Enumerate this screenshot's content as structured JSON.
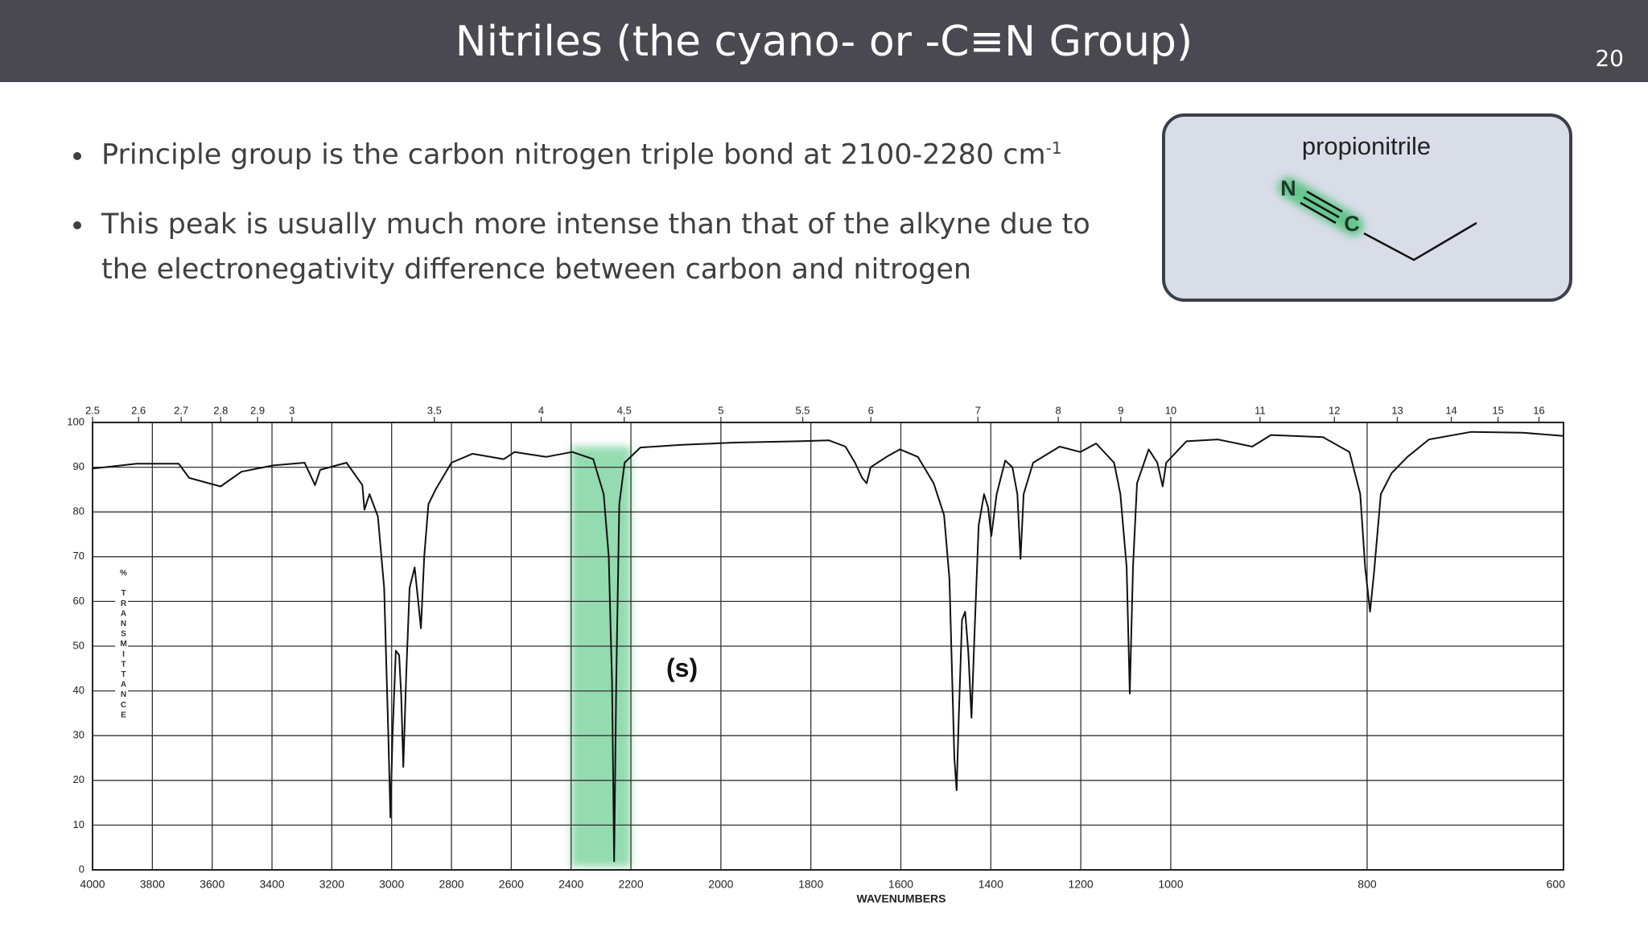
{
  "slide": {
    "title": "Nitriles (the cyano- or -C≡N Group)",
    "page_number": 20,
    "bullets": [
      {
        "text": "Principle group is the carbon nitrogen triple bond at 2100-2280 cm",
        "sup": "-1"
      },
      {
        "text": "This peak is usually much more intense than that of the alkyne due to the electronegativity difference between carbon and nitrogen"
      }
    ],
    "structure": {
      "name": "propionitrile",
      "atoms": [
        "N",
        "C"
      ]
    }
  },
  "chart_data": {
    "type": "line",
    "color": "#111111",
    "xlabel": "WAVENUMBERS",
    "ylabel": "% TRANSMITTANCE",
    "annotation": "(s)",
    "highlight": {
      "range": [
        2400,
        2200
      ],
      "color": "#3cbe6e"
    },
    "xlim": [
      4000,
      600
    ],
    "xbreaks": [
      2200,
      1000
    ],
    "xticks": [
      4000,
      3800,
      3600,
      3400,
      3200,
      3000,
      2800,
      2600,
      2400,
      2200,
      2000,
      1800,
      1600,
      1400,
      1200,
      1000,
      800,
      600
    ],
    "x2ticks": [
      2.5,
      2.6,
      2.7,
      2.8,
      2.9,
      3,
      3.5,
      4,
      4.5,
      5,
      5.5,
      6,
      7,
      8,
      9,
      10,
      11,
      12,
      13,
      14,
      15,
      16
    ],
    "ylim": [
      0,
      100
    ],
    "yticks": [
      0,
      10,
      20,
      30,
      40,
      50,
      60,
      70,
      80,
      90,
      100
    ],
    "grid": true,
    "x": [
      4000,
      3853,
      3712,
      3677,
      3572,
      3502,
      3396,
      3291,
      3256,
      3239,
      3151,
      3098,
      3091,
      3074,
      3046,
      3025,
      3011,
      3004,
      2997,
      2986,
      2975,
      2968,
      2961,
      2951,
      2940,
      2923,
      2912,
      2902,
      2891,
      2877,
      2853,
      2800,
      2730,
      2625,
      2589,
      2484,
      2396,
      2326,
      2291,
      2274,
      2263,
      2256,
      2249,
      2239,
      2221,
      2179,
      2086,
      1970,
      1830,
      1760,
      1723,
      1702,
      1686,
      1676,
      1667,
      1632,
      1602,
      1562,
      1527,
      1504,
      1492,
      1481,
      1476,
      1471,
      1464,
      1457,
      1450,
      1443,
      1436,
      1427,
      1415,
      1406,
      1399,
      1387,
      1368,
      1352,
      1341,
      1334,
      1327,
      1306,
      1247,
      1201,
      1166,
      1126,
      1112,
      1098,
      1091,
      1084,
      1075,
      1049,
      1030,
      1018,
      1010,
      984,
      952,
      917,
      898,
      845,
      818,
      807,
      802,
      797,
      793,
      786,
      775,
      759,
      737,
      694,
      641,
      600
    ],
    "values": [
      89.7,
      90.8,
      90.8,
      87.6,
      85.7,
      89,
      90.4,
      91,
      86,
      89.4,
      91,
      86,
      80.5,
      84,
      79,
      63,
      30,
      11.7,
      30,
      49,
      48,
      39,
      23,
      44,
      63,
      67.6,
      60.6,
      54,
      70,
      81.7,
      85,
      91,
      93,
      91.8,
      93.4,
      92.3,
      93.4,
      91.8,
      84,
      70,
      41.8,
      1.9,
      41.8,
      81.7,
      91,
      94.4,
      95,
      95.5,
      95.8,
      96,
      94.6,
      91,
      87.6,
      86.4,
      90,
      92.3,
      94,
      92.3,
      86.4,
      79.3,
      65,
      25,
      17.8,
      34.7,
      55.9,
      57.7,
      48.8,
      34,
      53.5,
      77,
      84,
      81,
      74.6,
      84,
      91.5,
      90,
      84,
      69.5,
      84,
      91,
      94.6,
      93.4,
      95.3,
      91,
      84,
      67.6,
      39.4,
      67.6,
      86.4,
      94,
      91,
      85.7,
      91,
      95.8,
      96.2,
      94.6,
      97.2,
      96.7,
      93.4,
      84,
      67.6,
      57.7,
      66.4,
      84,
      88.7,
      92.3,
      96.2,
      97.9,
      97.7,
      97
    ]
  }
}
